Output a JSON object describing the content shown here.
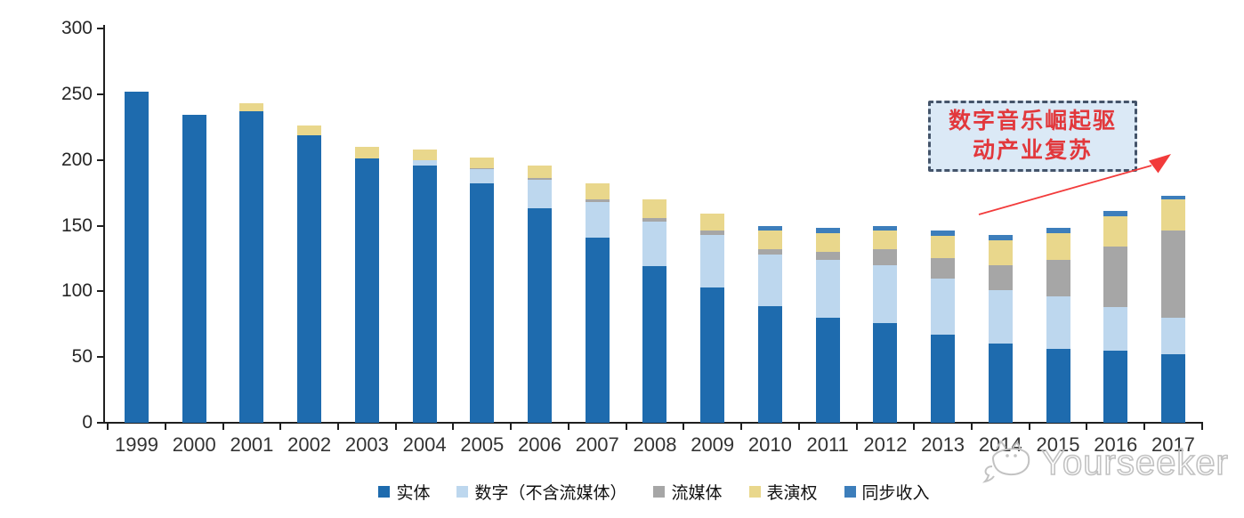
{
  "chart_data": {
    "type": "bar",
    "stacked": true,
    "title": "",
    "xlabel": "",
    "ylabel": "",
    "ylim": [
      0,
      300
    ],
    "yticks": [
      0,
      50,
      100,
      150,
      200,
      250,
      300
    ],
    "grid": false,
    "legend_position": "bottom",
    "categories": [
      "1999",
      "2000",
      "2001",
      "2002",
      "2003",
      "2004",
      "2005",
      "2006",
      "2007",
      "2008",
      "2009",
      "2010",
      "2011",
      "2012",
      "2013",
      "2014",
      "2015",
      "2016",
      "2017"
    ],
    "series": [
      {
        "name": "实体",
        "color": "#1E6BAE",
        "values": [
          252,
          234,
          237,
          219,
          201,
          196,
          182,
          163,
          141,
          119,
          103,
          89,
          80,
          76,
          67,
          60,
          56,
          55,
          52
        ]
      },
      {
        "name": "数字（不含流媒体）",
        "color": "#BDD7EE",
        "values": [
          0,
          0,
          0,
          0,
          0,
          4,
          11,
          22,
          27,
          34,
          40,
          39,
          44,
          44,
          43,
          41,
          40,
          33,
          28
        ]
      },
      {
        "name": "流媒体",
        "color": "#A6A6A6",
        "values": [
          0,
          0,
          0,
          0,
          0,
          0,
          1,
          1,
          2,
          3,
          3,
          4,
          6,
          12,
          15,
          19,
          28,
          46,
          66
        ]
      },
      {
        "name": "表演权",
        "color": "#E9D78C",
        "values": [
          0,
          0,
          6,
          7,
          9,
          8,
          8,
          10,
          12,
          14,
          13,
          14,
          14,
          14,
          17,
          19,
          20,
          23,
          24
        ]
      },
      {
        "name": "同步收入",
        "color": "#3D7EBB",
        "values": [
          0,
          0,
          0,
          0,
          0,
          0,
          0,
          0,
          0,
          0,
          0,
          4,
          4,
          4,
          4,
          4,
          4,
          4,
          3
        ]
      }
    ]
  },
  "annotation": {
    "line1": "数字音乐崛起驱",
    "line2": "动产业复苏",
    "box_border_color": "#44546A",
    "box_fill_color": "#DBE9F6",
    "text_color": "#E2383C",
    "arrow_color": "#F23B3B"
  },
  "watermark": {
    "brand": "Yourseeker"
  }
}
